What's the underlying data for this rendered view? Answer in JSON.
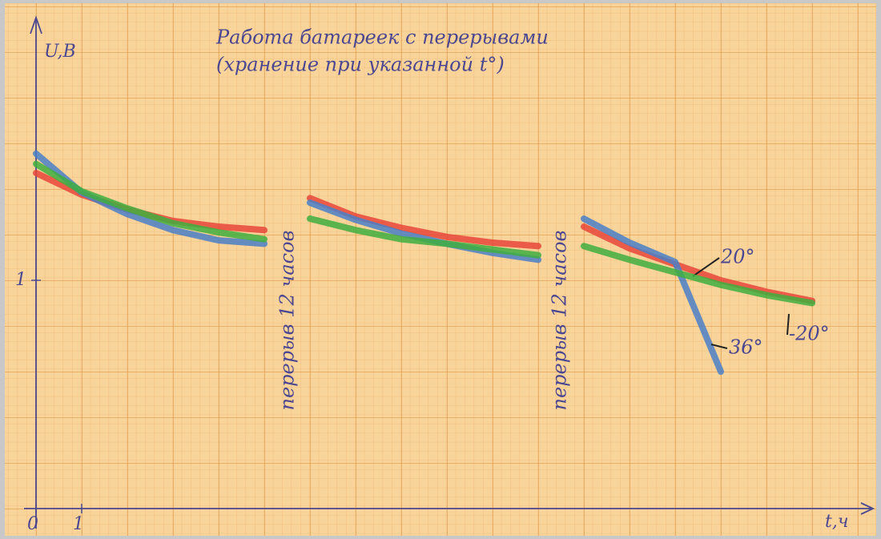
{
  "chart_data": {
    "type": "line",
    "title": [
      "Работа батареек с перерывами",
      "(хранение при указанной t°)"
    ],
    "y_label": "U,B",
    "x_label": "t,ч",
    "annotations": [
      "перерыв 12 часов",
      "перерыв 12 часов"
    ],
    "x": [
      0,
      1,
      2,
      3,
      4,
      5,
      5.5,
      6,
      7,
      8,
      9,
      10,
      11,
      11.5,
      12,
      13,
      14,
      15,
      16,
      17
    ],
    "series": [
      {
        "name": "20°",
        "color": "#e8463a",
        "values": [
          1.47,
          1.375,
          1.31,
          1.26,
          1.235,
          1.22,
          null,
          1.36,
          1.28,
          1.23,
          1.19,
          1.165,
          1.15,
          null,
          1.235,
          1.14,
          1.07,
          1.0,
          0.95,
          0.91
        ]
      },
      {
        "name": "36°",
        "color": "#4a7fc8",
        "values": [
          1.555,
          1.385,
          1.29,
          1.22,
          1.175,
          1.16,
          null,
          1.34,
          1.265,
          1.205,
          1.16,
          1.12,
          1.09,
          null,
          1.27,
          1.165,
          1.08,
          0.6,
          null,
          null
        ]
      },
      {
        "name": "-20°",
        "color": "#3fae3f",
        "values": [
          1.51,
          1.39,
          1.315,
          1.25,
          1.21,
          1.18,
          null,
          1.27,
          1.22,
          1.18,
          1.16,
          1.135,
          1.11,
          null,
          1.15,
          1.09,
          1.035,
          0.98,
          0.935,
          0.9
        ]
      }
    ],
    "xlim": [
      0,
      18.5
    ],
    "ylim": [
      0,
      2.14
    ],
    "xticks": [
      0,
      1
    ],
    "yticks": [
      1
    ],
    "grid": true
  }
}
